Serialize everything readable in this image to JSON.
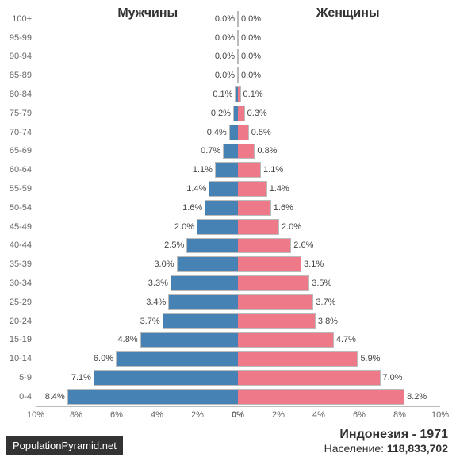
{
  "chart": {
    "type": "population-pyramid",
    "male_label": "Мужчины",
    "female_label": "Женщины",
    "male_color": "#4682b4",
    "female_color": "#ee7989",
    "background_color": "#ffffff",
    "border_color": "#bbbbbb",
    "label_fontsize": 11,
    "title_fontsize": 16,
    "x_max_pct": 10,
    "age_groups": [
      {
        "label": "100+",
        "male": 0.0,
        "female": 0.0
      },
      {
        "label": "95-99",
        "male": 0.0,
        "female": 0.0
      },
      {
        "label": "90-94",
        "male": 0.0,
        "female": 0.0
      },
      {
        "label": "85-89",
        "male": 0.0,
        "female": 0.0
      },
      {
        "label": "80-84",
        "male": 0.1,
        "female": 0.1
      },
      {
        "label": "75-79",
        "male": 0.2,
        "female": 0.3
      },
      {
        "label": "70-74",
        "male": 0.4,
        "female": 0.5
      },
      {
        "label": "65-69",
        "male": 0.7,
        "female": 0.8
      },
      {
        "label": "60-64",
        "male": 1.1,
        "female": 1.1
      },
      {
        "label": "55-59",
        "male": 1.4,
        "female": 1.4
      },
      {
        "label": "50-54",
        "male": 1.6,
        "female": 1.6
      },
      {
        "label": "45-49",
        "male": 2.0,
        "female": 2.0
      },
      {
        "label": "40-44",
        "male": 2.5,
        "female": 2.6
      },
      {
        "label": "35-39",
        "male": 3.0,
        "female": 3.1
      },
      {
        "label": "30-34",
        "male": 3.3,
        "female": 3.5
      },
      {
        "label": "25-29",
        "male": 3.4,
        "female": 3.7
      },
      {
        "label": "20-24",
        "male": 3.7,
        "female": 3.8
      },
      {
        "label": "15-19",
        "male": 4.8,
        "female": 4.7
      },
      {
        "label": "10-14",
        "male": 6.0,
        "female": 5.9
      },
      {
        "label": "5-9",
        "male": 7.1,
        "female": 7.0
      },
      {
        "label": "0-4",
        "male": 8.4,
        "female": 8.2
      }
    ],
    "x_ticks": [
      "10%",
      "8%",
      "6%",
      "4%",
      "2%",
      "0%",
      "2%",
      "4%",
      "6%",
      "8%",
      "10%"
    ]
  },
  "footer": {
    "source": "PopulationPyramid.net",
    "country_year": "Индонезия - 1971",
    "pop_label": "Население: ",
    "pop_value": "118,833,702"
  }
}
